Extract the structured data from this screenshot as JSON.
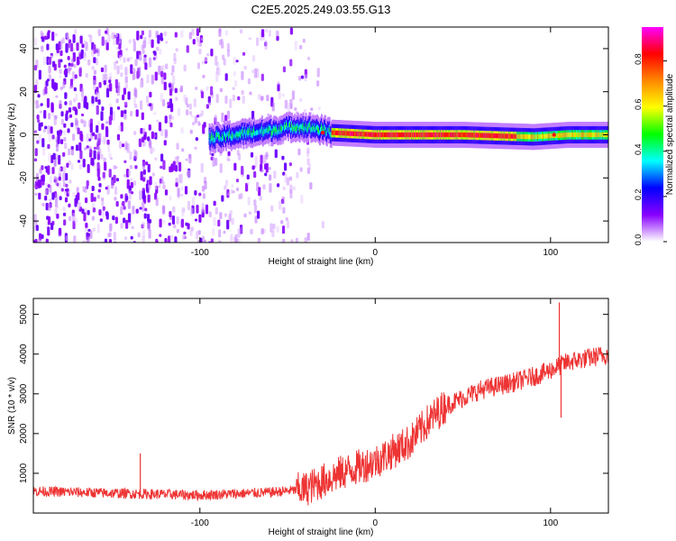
{
  "figure_title": "C2E5.2025.249.03.55.G13",
  "chart_data": [
    {
      "type": "heatmap",
      "xlabel": "Height of straight line (km)",
      "ylabel": "Frequency (Hz)",
      "xlim": [
        -195,
        133
      ],
      "ylim": [
        -50,
        50
      ],
      "x_ticks": [
        -100,
        0,
        100
      ],
      "x_tick_labels": [
        "-100",
        "0",
        "100"
      ],
      "y_ticks": [
        -40,
        -20,
        0,
        20,
        40
      ],
      "y_tick_labels": [
        "-40",
        "-20",
        "0",
        "20",
        "40"
      ],
      "grid": false,
      "colorbar": {
        "label": "Normalized spectral amplitude",
        "range": [
          0,
          0.95
        ],
        "ticks": [
          0.0,
          0.2,
          0.4,
          0.6,
          0.8
        ],
        "tick_labels": [
          "0.0",
          "0.2",
          "0.4",
          "0.6",
          "0.8"
        ],
        "colors": [
          "#ffffff",
          "#8800ff",
          "#0000ff",
          "#00ffff",
          "#00ff00",
          "#ffff00",
          "#ff8800",
          "#ff0000",
          "#ff00ff"
        ]
      },
      "description_points": {
        "noise_region_x": [
          -195,
          -30
        ],
        "signal_start_x": -95,
        "signal_frequency_hz": [
          [
            -95,
            -2
          ],
          [
            -80,
            0
          ],
          [
            -60,
            2
          ],
          [
            -45,
            4
          ],
          [
            -35,
            3
          ],
          [
            -25,
            1
          ],
          [
            0,
            0
          ],
          [
            50,
            0
          ],
          [
            90,
            -1
          ],
          [
            110,
            0
          ],
          [
            133,
            0
          ]
        ]
      }
    },
    {
      "type": "line",
      "xlabel": "Height of straight line (km)",
      "ylabel": "SNR (10 * v/v)",
      "xlim": [
        -195,
        133
      ],
      "ylim": [
        0,
        5400
      ],
      "x_ticks": [
        -100,
        0,
        100
      ],
      "x_tick_labels": [
        "-100",
        "0",
        "100"
      ],
      "y_ticks": [
        1000,
        2000,
        3000,
        4000,
        5000
      ],
      "y_tick_labels": [
        "1000",
        "2000",
        "3000",
        "4000",
        "5000"
      ],
      "grid": false,
      "series_color": "#ee3333",
      "trend": {
        "x": [
          -195,
          -150,
          -100,
          -60,
          -40,
          -20,
          0,
          20,
          30,
          40,
          60,
          80,
          95,
          110,
          133
        ],
        "y": [
          550,
          500,
          450,
          520,
          600,
          1000,
          1300,
          1800,
          2300,
          2700,
          3100,
          3300,
          3500,
          3800,
          4000
        ]
      },
      "spikes": [
        {
          "x": -134,
          "y": 1500
        },
        {
          "x": 105,
          "y": 5300
        },
        {
          "x": 106,
          "y": 2400
        }
      ]
    }
  ]
}
